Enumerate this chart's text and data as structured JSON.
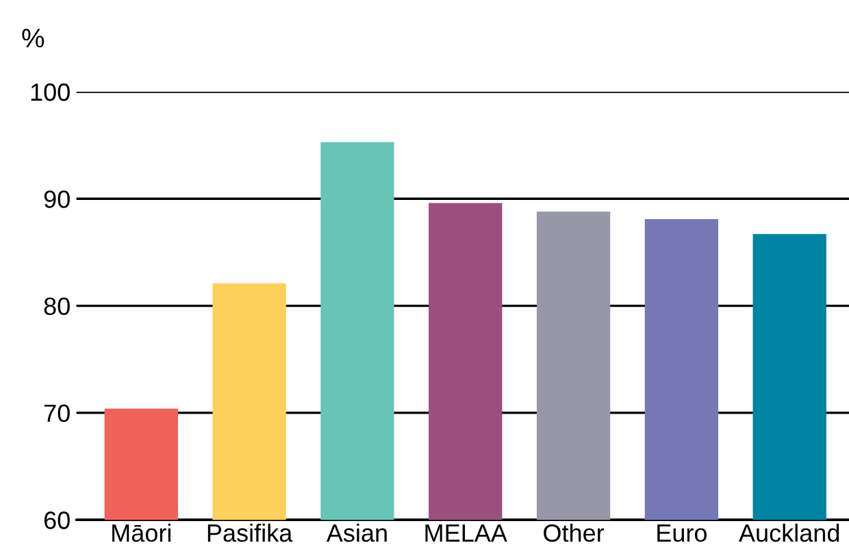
{
  "chart_data": {
    "type": "bar",
    "ylabel": "%",
    "categories": [
      "Māori",
      "Pasifika",
      "Asian",
      "MELAA",
      "Other",
      "Euro",
      "Auckland"
    ],
    "values": [
      70.4,
      82.1,
      95.3,
      89.6,
      88.8,
      88.1,
      86.7
    ],
    "colors": [
      "#f0625a",
      "#fdd05a",
      "#66c5b5",
      "#9b4f7d",
      "#9797a8",
      "#7679b5",
      "#0084a4"
    ],
    "ylim": [
      60,
      100
    ],
    "yticks": [
      60,
      70,
      80,
      90,
      100
    ],
    "grid": "y"
  }
}
